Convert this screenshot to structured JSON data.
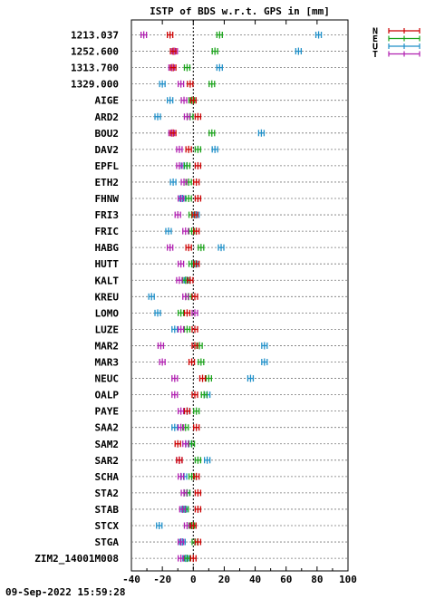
{
  "title": "ISTP of BDS w.r.t. GPS in [mm]",
  "footer": "09-Sep-2022 15:59:28",
  "chart_data": {
    "type": "scatter",
    "title": "ISTP of BDS w.r.t. GPS in [mm]",
    "xlim": [
      -40,
      100
    ],
    "xticks": [
      -40,
      -20,
      0,
      20,
      40,
      60,
      80,
      100
    ],
    "grid": true,
    "legend_position": "top-right",
    "series": [
      {
        "name": "N",
        "color": "#cc0000"
      },
      {
        "name": "E",
        "color": "#1aa31a"
      },
      {
        "name": "U",
        "color": "#1f8fc8"
      },
      {
        "name": "T",
        "color": "#b020b0"
      }
    ],
    "stations": [
      {
        "name": "1213.037",
        "N": -15,
        "E": 17,
        "U": 81,
        "T": -32
      },
      {
        "name": "1252.600",
        "N": -13,
        "E": 14,
        "U": 68,
        "T": -12
      },
      {
        "name": "1313.700",
        "N": -13,
        "E": -4,
        "U": 17,
        "T": -14
      },
      {
        "name": "1329.000",
        "N": -2,
        "E": 12,
        "U": -20,
        "T": -8
      },
      {
        "name": "AIGE",
        "N": 0,
        "E": -1,
        "U": -15,
        "T": -6
      },
      {
        "name": "ARD2",
        "N": 3,
        "E": -2,
        "U": -23,
        "T": -4
      },
      {
        "name": "BOU2",
        "N": -13,
        "E": 12,
        "U": 44,
        "T": -14
      },
      {
        "name": "DAV2",
        "N": -3,
        "E": 3,
        "U": 14,
        "T": -9
      },
      {
        "name": "EPFL",
        "N": 3,
        "E": -4,
        "U": -6,
        "T": -9
      },
      {
        "name": "ETH2",
        "N": 2,
        "E": -3,
        "U": -13,
        "T": -6
      },
      {
        "name": "FHNW",
        "N": 3,
        "E": -3,
        "U": -7,
        "T": -8
      },
      {
        "name": "FRI3",
        "N": 1,
        "E": -1,
        "U": 2,
        "T": -10
      },
      {
        "name": "FRIC",
        "N": 2,
        "E": -1,
        "U": -16,
        "T": -5
      },
      {
        "name": "HABG",
        "N": -3,
        "E": 5,
        "U": 18,
        "T": -15
      },
      {
        "name": "HUTT",
        "N": 2,
        "E": -1,
        "U": 1,
        "T": -8
      },
      {
        "name": "KALT",
        "N": -2,
        "E": -5,
        "U": -4,
        "T": -9
      },
      {
        "name": "KREU",
        "N": 1,
        "E": -3,
        "U": -27,
        "T": -5
      },
      {
        "name": "LOMO",
        "N": -4,
        "E": -8,
        "U": -23,
        "T": 1
      },
      {
        "name": "LUZE",
        "N": 1,
        "E": -4,
        "U": -12,
        "T": -8
      },
      {
        "name": "MAR2",
        "N": 1,
        "E": 4,
        "U": 46,
        "T": -21
      },
      {
        "name": "MAR3",
        "N": -1,
        "E": 5,
        "U": 46,
        "T": -20
      },
      {
        "name": "NEUC",
        "N": 6,
        "E": 10,
        "U": 37,
        "T": -12
      },
      {
        "name": "OALP",
        "N": 1,
        "E": 7,
        "U": 9,
        "T": -12
      },
      {
        "name": "PAYE",
        "N": -4,
        "E": 2,
        "U": -4,
        "T": -8
      },
      {
        "name": "SAA2",
        "N": 2,
        "E": -5,
        "U": -12,
        "T": -8
      },
      {
        "name": "SAM2",
        "N": -10,
        "E": -1,
        "U": -3,
        "T": -5
      },
      {
        "name": "SAR2",
        "N": -9,
        "E": 3,
        "U": 9,
        "T": -9
      },
      {
        "name": "SCHA",
        "N": 2,
        "E": -1,
        "U": -6,
        "T": -8
      },
      {
        "name": "STA2",
        "N": 3,
        "E": -4,
        "U": -4,
        "T": -6
      },
      {
        "name": "STAB",
        "N": 3,
        "E": -5,
        "U": -6,
        "T": -7
      },
      {
        "name": "STCX",
        "N": 0,
        "E": -1,
        "U": -22,
        "T": -4
      },
      {
        "name": "STGA",
        "N": 3,
        "E": 1,
        "U": -7,
        "T": -8
      },
      {
        "name": "ZIM2_14001M008",
        "N": 0,
        "E": -4,
        "U": -5,
        "T": -8
      }
    ]
  }
}
